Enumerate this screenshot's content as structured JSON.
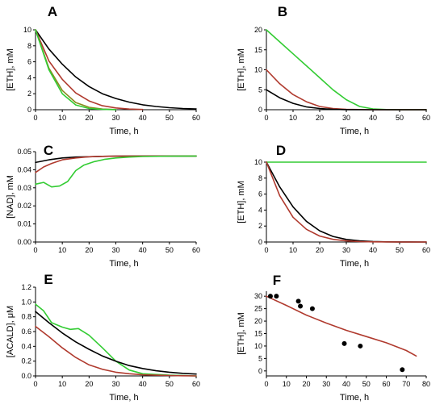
{
  "colors": {
    "black": "#000000",
    "red": "#b03a2e",
    "green": "#33cc33",
    "olive": "#8a8a1f",
    "points": "#000000"
  },
  "chart_data": [
    {
      "panel": "A",
      "type": "line",
      "xlabel": "Time,  h",
      "ylabel": "[ETH],  mM",
      "xlim": [
        0,
        60
      ],
      "ylim": [
        0,
        10
      ],
      "xticks": [
        0,
        10,
        20,
        30,
        40,
        50,
        60
      ],
      "yticks": [
        0,
        2,
        4,
        6,
        8,
        10
      ],
      "ytick_labels": [
        "0",
        "2",
        "4",
        "6",
        "8",
        "10"
      ],
      "series": [
        {
          "color": "black",
          "x": [
            0,
            5,
            10,
            15,
            20,
            25,
            30,
            35,
            40,
            45,
            50,
            55,
            60
          ],
          "y": [
            10,
            7.6,
            5.7,
            4.1,
            2.9,
            2.0,
            1.4,
            0.95,
            0.62,
            0.4,
            0.25,
            0.15,
            0.1
          ]
        },
        {
          "color": "red",
          "x": [
            0,
            5,
            10,
            15,
            20,
            25,
            30,
            35,
            40
          ],
          "y": [
            10,
            6.1,
            3.8,
            2.1,
            1.1,
            0.5,
            0.22,
            0.08,
            0.03
          ]
        },
        {
          "color": "olive",
          "x": [
            0,
            5,
            10,
            15,
            20,
            25,
            30
          ],
          "y": [
            10,
            5.2,
            2.4,
            0.9,
            0.3,
            0.08,
            0.02
          ]
        },
        {
          "color": "green",
          "x": [
            0,
            5,
            10,
            15,
            20,
            25,
            30
          ],
          "y": [
            10,
            5.0,
            2.0,
            0.6,
            0.15,
            0.04,
            0.01
          ]
        }
      ]
    },
    {
      "panel": "B",
      "type": "line",
      "xlabel": "Time,  h",
      "ylabel": "[ETH],  mM",
      "xlim": [
        0,
        60
      ],
      "ylim": [
        0,
        20
      ],
      "xticks": [
        0,
        10,
        20,
        30,
        40,
        50,
        60
      ],
      "yticks": [
        0,
        5,
        10,
        15,
        20
      ],
      "ytick_labels": [
        "0",
        "5",
        "10",
        "15",
        "20"
      ],
      "series": [
        {
          "color": "green",
          "x": [
            0,
            5,
            10,
            15,
            20,
            25,
            30,
            35,
            40,
            45,
            50,
            60
          ],
          "y": [
            20,
            17,
            14,
            11,
            8,
            5,
            2.5,
            0.8,
            0.2,
            0.05,
            0,
            0
          ]
        },
        {
          "color": "red",
          "x": [
            0,
            5,
            10,
            15,
            20,
            25,
            30,
            40,
            60
          ],
          "y": [
            10,
            6.5,
            3.8,
            2.0,
            0.8,
            0.3,
            0.1,
            0,
            0
          ]
        },
        {
          "color": "black",
          "x": [
            0,
            5,
            10,
            15,
            20,
            25,
            30,
            40,
            60
          ],
          "y": [
            5,
            3.0,
            1.6,
            0.7,
            0.3,
            0.1,
            0.03,
            0,
            0
          ]
        }
      ]
    },
    {
      "panel": "C",
      "type": "line",
      "xlabel": "Time,  h",
      "ylabel": "[NAD],  mM",
      "xlim": [
        0,
        60
      ],
      "ylim": [
        0,
        0.05
      ],
      "xticks": [
        0,
        10,
        20,
        30,
        40,
        50,
        60
      ],
      "yticks": [
        0,
        0.01,
        0.02,
        0.03,
        0.04,
        0.05
      ],
      "ytick_labels": [
        "0.00",
        "0.01",
        "0.02",
        "0.03",
        "0.04",
        "0.05"
      ],
      "series": [
        {
          "color": "black",
          "x": [
            0,
            5,
            10,
            15,
            20,
            25,
            30,
            40,
            50,
            60
          ],
          "y": [
            0.044,
            0.0455,
            0.0465,
            0.047,
            0.0472,
            0.0474,
            0.0475,
            0.0476,
            0.0476,
            0.0476
          ]
        },
        {
          "color": "red",
          "x": [
            0,
            3,
            6,
            10,
            15,
            20,
            25,
            30,
            40,
            60
          ],
          "y": [
            0.0385,
            0.0415,
            0.0435,
            0.0455,
            0.0465,
            0.0472,
            0.0474,
            0.0475,
            0.0476,
            0.0476
          ]
        },
        {
          "color": "green",
          "x": [
            0,
            3,
            6,
            9,
            12,
            15,
            18,
            22,
            26,
            30,
            35,
            40,
            50,
            60
          ],
          "y": [
            0.032,
            0.033,
            0.0305,
            0.031,
            0.0335,
            0.0395,
            0.0425,
            0.0445,
            0.0458,
            0.0465,
            0.047,
            0.0473,
            0.0475,
            0.0476
          ]
        }
      ]
    },
    {
      "panel": "D",
      "type": "line",
      "xlabel": "Time,  h",
      "ylabel": "[ETH],  mM",
      "xlim": [
        0,
        60
      ],
      "ylim": [
        0,
        10
      ],
      "xticks": [
        0,
        10,
        20,
        30,
        40,
        50,
        60
      ],
      "yticks": [
        0,
        2,
        4,
        6,
        8,
        10
      ],
      "ytick_labels": [
        "0",
        "2",
        "4",
        "6",
        "8",
        "10"
      ],
      "series": [
        {
          "color": "green",
          "x": [
            0,
            60
          ],
          "y": [
            10,
            10
          ]
        },
        {
          "color": "black",
          "x": [
            0,
            5,
            10,
            15,
            20,
            25,
            30,
            35,
            40,
            45,
            50,
            60
          ],
          "y": [
            10,
            6.9,
            4.4,
            2.6,
            1.4,
            0.7,
            0.32,
            0.14,
            0.06,
            0.02,
            0.01,
            0
          ]
        },
        {
          "color": "red",
          "x": [
            0,
            5,
            10,
            15,
            20,
            25,
            30,
            35,
            40,
            50,
            60
          ],
          "y": [
            10,
            5.8,
            3.1,
            1.6,
            0.75,
            0.33,
            0.14,
            0.05,
            0.02,
            0,
            0
          ]
        }
      ]
    },
    {
      "panel": "E",
      "type": "line",
      "xlabel": "Time,  h",
      "ylabel": "[ACALD],  μM",
      "xlim": [
        0,
        60
      ],
      "ylim": [
        0,
        1.2
      ],
      "xticks": [
        0,
        10,
        20,
        30,
        40,
        50,
        60
      ],
      "yticks": [
        0,
        0.2,
        0.4,
        0.6,
        0.8,
        1.0,
        1.2
      ],
      "ytick_labels": [
        "0.0",
        "0.2",
        "0.4",
        "0.6",
        "0.8",
        "1.0",
        "1.2"
      ],
      "series": [
        {
          "color": "green",
          "x": [
            0,
            3,
            6,
            10,
            13,
            16,
            20,
            25,
            30,
            35,
            40,
            50,
            60
          ],
          "y": [
            0.97,
            0.88,
            0.72,
            0.66,
            0.63,
            0.64,
            0.55,
            0.38,
            0.2,
            0.08,
            0.03,
            0.01,
            0
          ]
        },
        {
          "color": "black",
          "x": [
            0,
            5,
            10,
            15,
            20,
            25,
            30,
            35,
            40,
            45,
            50,
            55,
            60
          ],
          "y": [
            0.87,
            0.72,
            0.58,
            0.46,
            0.36,
            0.27,
            0.2,
            0.14,
            0.1,
            0.07,
            0.05,
            0.035,
            0.025
          ]
        },
        {
          "color": "red",
          "x": [
            0,
            5,
            10,
            15,
            20,
            25,
            30,
            35,
            40,
            45,
            50,
            55,
            60
          ],
          "y": [
            0.67,
            0.53,
            0.38,
            0.25,
            0.15,
            0.09,
            0.05,
            0.03,
            0.015,
            0.01,
            0.005,
            0.002,
            0
          ]
        }
      ]
    },
    {
      "panel": "F",
      "type": "scatter",
      "xlabel": "Time,  h",
      "ylabel": "[ETH],  mM",
      "xlim": [
        0,
        80
      ],
      "ylim": [
        -2,
        32
      ],
      "xticks": [
        0,
        10,
        20,
        30,
        40,
        50,
        60,
        70,
        80
      ],
      "yticks": [
        0,
        5,
        10,
        15,
        20,
        25,
        30
      ],
      "ytick_labels": [
        "0",
        "5",
        "10",
        "15",
        "20",
        "25",
        "30"
      ],
      "points": {
        "color": "points",
        "x": [
          2,
          5,
          16,
          17,
          23,
          39,
          47,
          68
        ],
        "y": [
          30,
          30,
          28,
          26,
          25,
          11,
          10,
          0.5
        ]
      },
      "series": [
        {
          "color": "red",
          "x": [
            0,
            10,
            20,
            30,
            40,
            50,
            60,
            70,
            75
          ],
          "y": [
            30,
            26.3,
            22.4,
            19.2,
            16.3,
            13.8,
            11.3,
            8.2,
            6
          ]
        }
      ]
    }
  ]
}
